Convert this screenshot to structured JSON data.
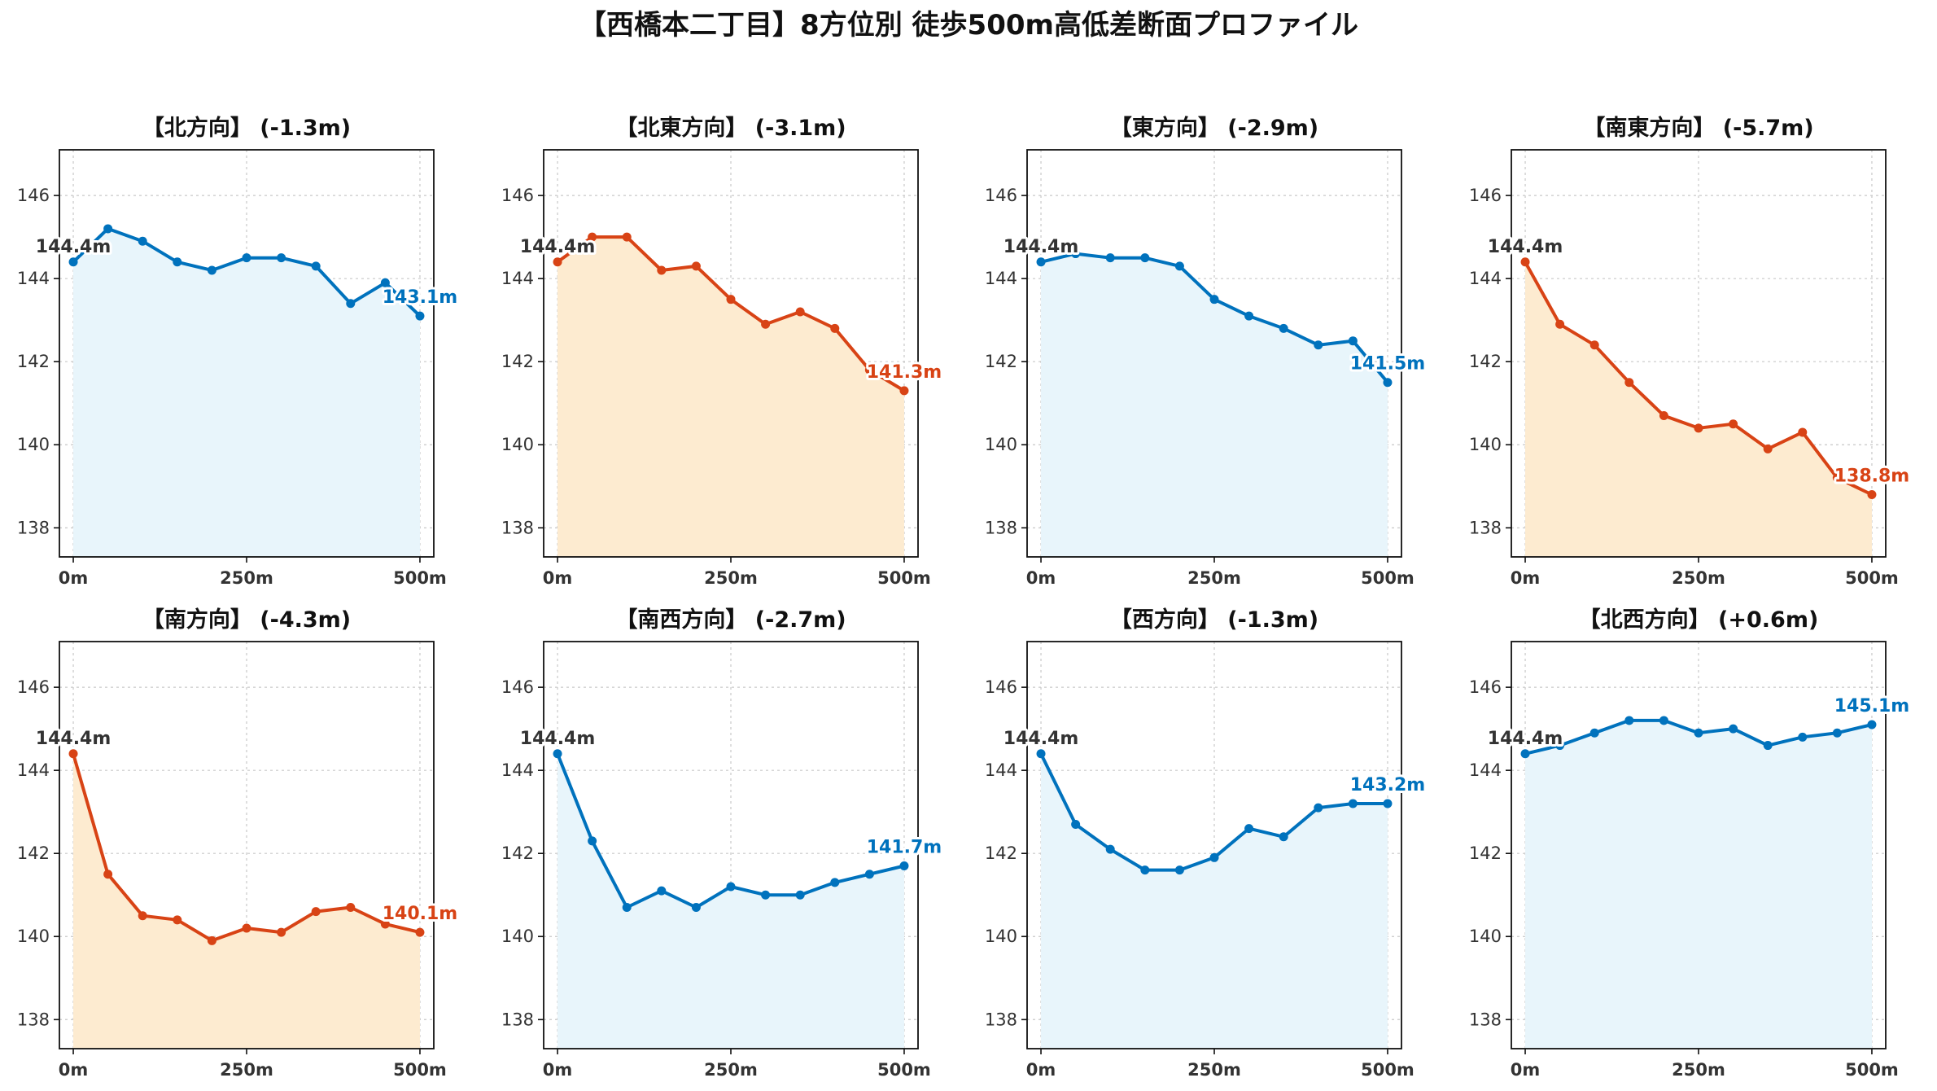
{
  "figure_title": "【西橋本二丁目】8方位別 徒歩500m高低差断面プロファイル",
  "colors": {
    "descent": "#d84315",
    "descent_fill": "#fdebd0",
    "ascent": "#0072bd",
    "ascent_fill": "#e8f5fb",
    "start_label": "#333333"
  },
  "chart_data": [
    {
      "type": "area",
      "title": "【北方向】 (-1.3m)",
      "trend": "flat",
      "x": [
        0,
        50,
        100,
        150,
        200,
        250,
        300,
        350,
        400,
        450,
        500
      ],
      "values": [
        144.4,
        145.2,
        144.9,
        144.4,
        144.2,
        144.5,
        144.5,
        144.3,
        143.4,
        143.9,
        143.1
      ],
      "start_label": "144.4m",
      "end_label": "143.1m",
      "xticks": [
        "0m",
        "250m",
        "500m"
      ],
      "yticks": [
        "138",
        "140",
        "142",
        "144",
        "146"
      ],
      "xlim": [
        -20,
        520
      ],
      "ylim": [
        137.3,
        147.1
      ],
      "grid": true
    },
    {
      "type": "area",
      "title": "【北東方向】 (-3.1m)",
      "trend": "descent",
      "x": [
        0,
        50,
        100,
        150,
        200,
        250,
        300,
        350,
        400,
        450,
        500
      ],
      "values": [
        144.4,
        145.0,
        145.0,
        144.2,
        144.3,
        143.5,
        142.9,
        143.2,
        142.8,
        141.8,
        141.3
      ],
      "start_label": "144.4m",
      "end_label": "141.3m",
      "xticks": [
        "0m",
        "250m",
        "500m"
      ],
      "yticks": [
        "138",
        "140",
        "142",
        "144",
        "146"
      ],
      "xlim": [
        -20,
        520
      ],
      "ylim": [
        137.3,
        147.1
      ],
      "grid": true
    },
    {
      "type": "area",
      "title": "【東方向】 (-2.9m)",
      "trend": "flat",
      "x": [
        0,
        50,
        100,
        150,
        200,
        250,
        300,
        350,
        400,
        450,
        500
      ],
      "values": [
        144.4,
        144.6,
        144.5,
        144.5,
        144.3,
        143.5,
        143.1,
        142.8,
        142.4,
        142.5,
        141.5
      ],
      "start_label": "144.4m",
      "end_label": "141.5m",
      "xticks": [
        "0m",
        "250m",
        "500m"
      ],
      "yticks": [
        "138",
        "140",
        "142",
        "144",
        "146"
      ],
      "xlim": [
        -20,
        520
      ],
      "ylim": [
        137.3,
        147.1
      ],
      "grid": true
    },
    {
      "type": "area",
      "title": "【南東方向】 (-5.7m)",
      "trend": "descent",
      "x": [
        0,
        50,
        100,
        150,
        200,
        250,
        300,
        350,
        400,
        450,
        500
      ],
      "values": [
        144.4,
        142.9,
        142.4,
        141.5,
        140.7,
        140.4,
        140.5,
        139.9,
        140.3,
        139.2,
        138.8
      ],
      "start_label": "144.4m",
      "end_label": "138.8m",
      "xticks": [
        "0m",
        "250m",
        "500m"
      ],
      "yticks": [
        "138",
        "140",
        "142",
        "144",
        "146"
      ],
      "xlim": [
        -20,
        520
      ],
      "ylim": [
        137.3,
        147.1
      ],
      "grid": true
    },
    {
      "type": "area",
      "title": "【南方向】 (-4.3m)",
      "trend": "descent",
      "x": [
        0,
        50,
        100,
        150,
        200,
        250,
        300,
        350,
        400,
        450,
        500
      ],
      "values": [
        144.4,
        141.5,
        140.5,
        140.4,
        139.9,
        140.2,
        140.1,
        140.6,
        140.7,
        140.3,
        140.1
      ],
      "start_label": "144.4m",
      "end_label": "140.1m",
      "xticks": [
        "0m",
        "250m",
        "500m"
      ],
      "yticks": [
        "138",
        "140",
        "142",
        "144",
        "146"
      ],
      "xlim": [
        -20,
        520
      ],
      "ylim": [
        137.3,
        147.1
      ],
      "grid": true
    },
    {
      "type": "area",
      "title": "【南西方向】 (-2.7m)",
      "trend": "flat",
      "x": [
        0,
        50,
        100,
        150,
        200,
        250,
        300,
        350,
        400,
        450,
        500
      ],
      "values": [
        144.4,
        142.3,
        140.7,
        141.1,
        140.7,
        141.2,
        141.0,
        141.0,
        141.3,
        141.5,
        141.7
      ],
      "start_label": "144.4m",
      "end_label": "141.7m",
      "xticks": [
        "0m",
        "250m",
        "500m"
      ],
      "yticks": [
        "138",
        "140",
        "142",
        "144",
        "146"
      ],
      "xlim": [
        -20,
        520
      ],
      "ylim": [
        137.3,
        147.1
      ],
      "grid": true
    },
    {
      "type": "area",
      "title": "【西方向】 (-1.3m)",
      "trend": "flat",
      "x": [
        0,
        50,
        100,
        150,
        200,
        250,
        300,
        350,
        400,
        450,
        500
      ],
      "values": [
        144.4,
        142.7,
        142.1,
        141.6,
        141.6,
        141.9,
        142.6,
        142.4,
        143.1,
        143.2,
        143.2
      ],
      "start_label": "144.4m",
      "end_label": "143.2m",
      "xticks": [
        "0m",
        "250m",
        "500m"
      ],
      "yticks": [
        "138",
        "140",
        "142",
        "144",
        "146"
      ],
      "xlim": [
        -20,
        520
      ],
      "ylim": [
        137.3,
        147.1
      ],
      "grid": true
    },
    {
      "type": "area",
      "title": "【北西方向】 (+0.6m)",
      "trend": "flat",
      "x": [
        0,
        50,
        100,
        150,
        200,
        250,
        300,
        350,
        400,
        450,
        500
      ],
      "values": [
        144.4,
        144.6,
        144.9,
        145.2,
        145.2,
        144.9,
        145.0,
        144.6,
        144.8,
        144.9,
        145.1
      ],
      "start_label": "144.4m",
      "end_label": "145.1m",
      "xticks": [
        "0m",
        "250m",
        "500m"
      ],
      "yticks": [
        "138",
        "140",
        "142",
        "144",
        "146"
      ],
      "xlim": [
        -20,
        520
      ],
      "ylim": [
        137.3,
        147.1
      ],
      "grid": true
    }
  ]
}
